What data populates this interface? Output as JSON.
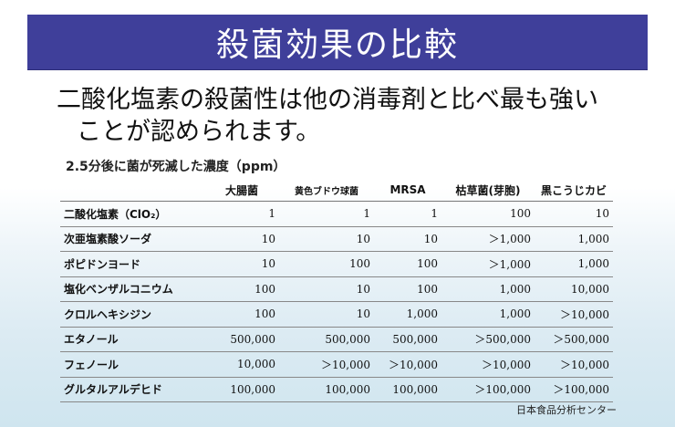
{
  "title": "殺菌効果の比較",
  "subtitle": {
    "line1": "二酸化塩素の殺菌性は他の消毒剤と比べ最も強い",
    "line2": "ことが認められます。"
  },
  "caption": "2.5分後に菌が死滅した濃度（ppm）",
  "table": {
    "headers": [
      "",
      "大腸菌",
      "黄色ブドウ球菌",
      "MRSA",
      "枯草菌(芽胞)",
      "黒こうじカビ"
    ],
    "rows": [
      {
        "name": "二酸化塩素（ClO₂）",
        "values": [
          "1",
          "1",
          "1",
          "100",
          "10"
        ]
      },
      {
        "name": "次亜塩素酸ソーダ",
        "values": [
          "10",
          "10",
          "10",
          "＞1,000",
          "1,000"
        ]
      },
      {
        "name": "ポピドンヨード",
        "values": [
          "10",
          "100",
          "100",
          "＞1,000",
          "1,000"
        ]
      },
      {
        "name": "塩化ベンザルコニウム",
        "values": [
          "100",
          "10",
          "100",
          "1,000",
          "10,000"
        ]
      },
      {
        "name": "クロルヘキシジン",
        "values": [
          "100",
          "10",
          "1,000",
          "1,000",
          "＞10,000"
        ]
      },
      {
        "name": "エタノール",
        "values": [
          "500,000",
          "500,000",
          "500,000",
          "＞500,000",
          "＞500,000"
        ]
      },
      {
        "name": "フェノール",
        "values": [
          "10,000",
          "＞10,000",
          "＞10,000",
          "＞10,000",
          "＞10,000"
        ]
      },
      {
        "name": "グルタルアルデヒド",
        "values": [
          "100,000",
          "100,000",
          "100,000",
          "＞100,000",
          "＞100,000"
        ]
      }
    ]
  },
  "footer": "日本食品分析センター"
}
